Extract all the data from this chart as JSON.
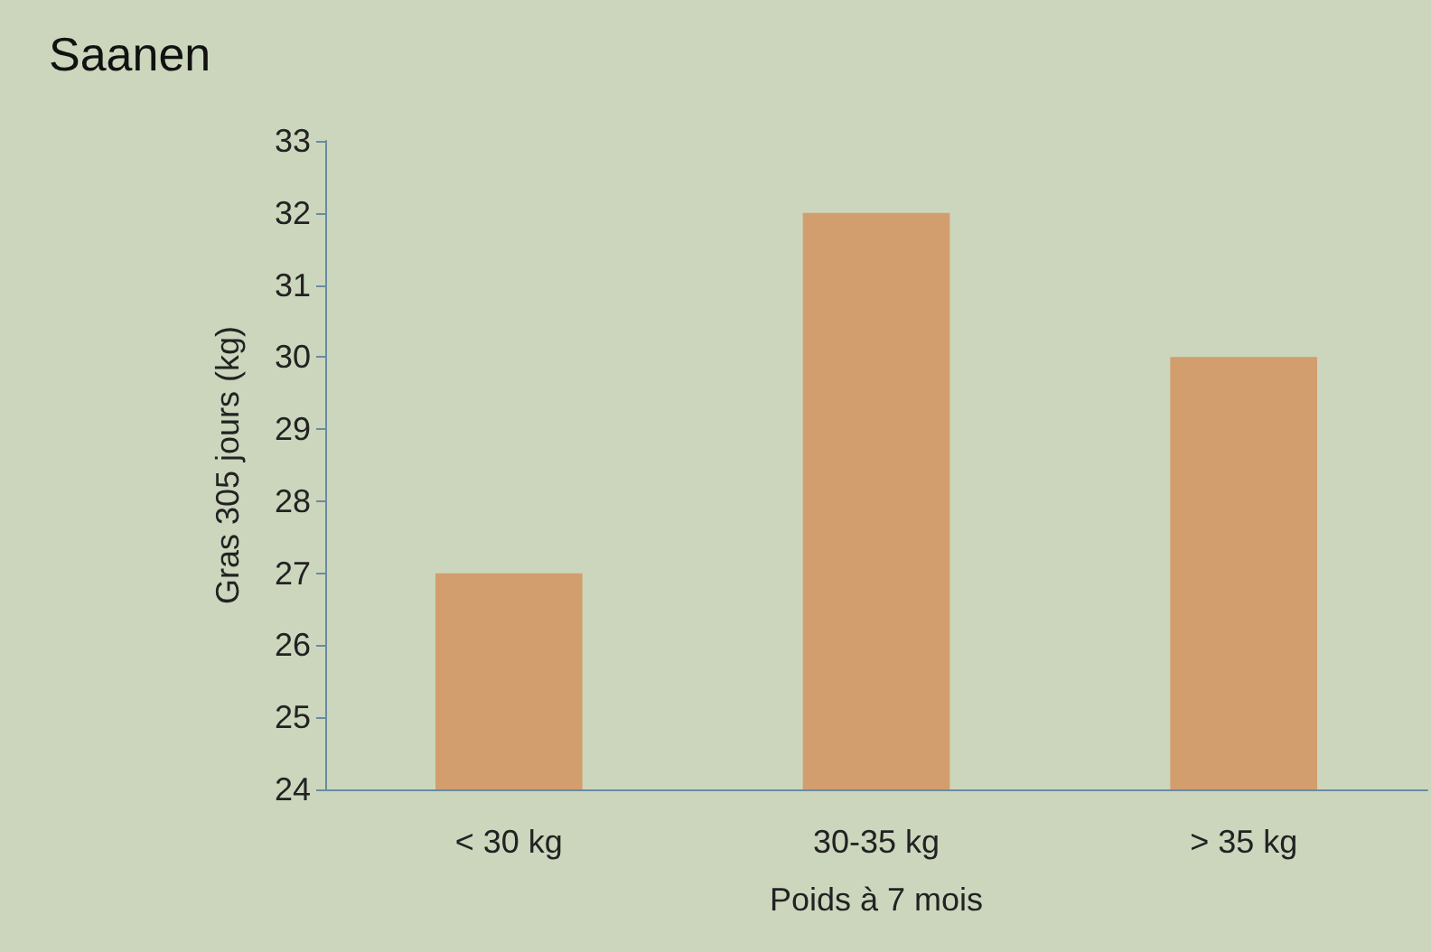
{
  "chart_data": {
    "type": "bar",
    "title": "Saanen",
    "xlabel": "Poids à 7 mois",
    "ylabel": "Gras 305 jours (kg)",
    "categories": [
      "< 30 kg",
      "30-35 kg",
      "> 35 kg"
    ],
    "values": [
      27,
      32,
      30
    ],
    "color": "#d29e6e",
    "ylim": [
      24,
      33
    ],
    "yticks": [
      24,
      25,
      26,
      27,
      28,
      29,
      30,
      31,
      32,
      33
    ],
    "grid": false
  }
}
